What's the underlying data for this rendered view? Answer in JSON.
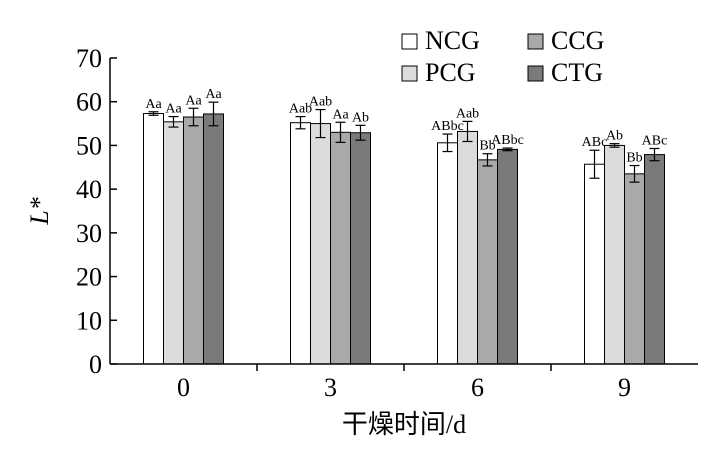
{
  "chart_data": {
    "type": "bar",
    "title": "",
    "xlabel": "干燥时间/d",
    "ylabel": "L*",
    "ylim": [
      0,
      70
    ],
    "yticks": [
      0,
      10,
      20,
      30,
      40,
      50,
      60,
      70
    ],
    "categories": [
      "0",
      "3",
      "6",
      "9"
    ],
    "legend_placement": "top-right",
    "grid": false,
    "series": [
      {
        "name": "NCG",
        "color": "#ffffff",
        "values": [
          57.3,
          55.2,
          50.6,
          45.7
        ],
        "errors": [
          0.4,
          1.4,
          2.0,
          3.2
        ],
        "labels": [
          "Aa",
          "Aab",
          "ABbc",
          "ABc"
        ]
      },
      {
        "name": "PCG",
        "color": "#dcdcdc",
        "values": [
          55.4,
          55.0,
          53.2,
          50.0
        ],
        "errors": [
          1.2,
          3.2,
          2.3,
          0.4
        ],
        "labels": [
          "Aa",
          "Aab",
          "Aab",
          "Ab"
        ]
      },
      {
        "name": "CCG",
        "color": "#a9a9a9",
        "values": [
          56.5,
          53.0,
          46.7,
          43.5
        ],
        "errors": [
          2.0,
          2.3,
          1.4,
          1.9
        ],
        "labels": [
          "Aa",
          "Aa",
          "Bb",
          "Bb"
        ]
      },
      {
        "name": "CTG",
        "color": "#7a7a7a",
        "values": [
          57.2,
          52.9,
          49.1,
          47.9
        ],
        "errors": [
          2.7,
          1.7,
          0.3,
          1.4
        ],
        "labels": [
          "Aa",
          "Ab",
          "ABbc",
          "ABc"
        ]
      }
    ]
  }
}
